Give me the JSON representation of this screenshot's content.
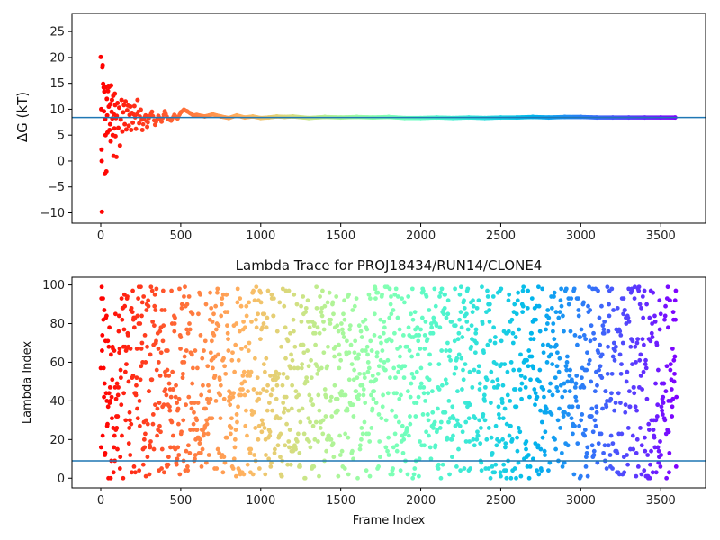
{
  "chart_data": [
    {
      "type": "scatter",
      "title": "",
      "xlabel": "",
      "ylabel": "ΔG (kT)",
      "xlim": [
        -180,
        3780
      ],
      "ylim": [
        -12,
        28.5
      ],
      "xticks": [
        0,
        500,
        1000,
        1500,
        2000,
        2500,
        3000,
        3500
      ],
      "yticks": [
        -10,
        -5,
        0,
        5,
        10,
        15,
        20,
        25
      ],
      "hline": 8.4,
      "hline_color": "#1f77b4",
      "colormap": "rainbow (red at frame 0 to violet at frame 3600)",
      "series_description": "running free-energy estimate per frame",
      "points": [
        [
          0,
          20.1
        ],
        [
          3,
          10.0
        ],
        [
          5,
          2.2
        ],
        [
          6,
          0.0
        ],
        [
          7,
          -9.8
        ],
        [
          10,
          18.1
        ],
        [
          12,
          18.5
        ],
        [
          15,
          14.9
        ],
        [
          18,
          14.2
        ],
        [
          20,
          9.6
        ],
        [
          22,
          13.4
        ],
        [
          25,
          -2.5
        ],
        [
          28,
          8.1
        ],
        [
          30,
          5.0
        ],
        [
          32,
          14.2
        ],
        [
          35,
          -2.0
        ],
        [
          38,
          12.0
        ],
        [
          40,
          8.8
        ],
        [
          42,
          5.5
        ],
        [
          45,
          13.5
        ],
        [
          48,
          14.5
        ],
        [
          50,
          10.5
        ],
        [
          52,
          14.3
        ],
        [
          55,
          6.0
        ],
        [
          58,
          7.1
        ],
        [
          60,
          11.0
        ],
        [
          62,
          3.8
        ],
        [
          65,
          14.6
        ],
        [
          68,
          9.5
        ],
        [
          70,
          11.8
        ],
        [
          72,
          8.2
        ],
        [
          75,
          5.0
        ],
        [
          78,
          12.6
        ],
        [
          80,
          1.0
        ],
        [
          82,
          9.0
        ],
        [
          85,
          6.3
        ],
        [
          88,
          13.0
        ],
        [
          90,
          10.8
        ],
        [
          92,
          4.8
        ],
        [
          95,
          8.3
        ],
        [
          98,
          0.8
        ],
        [
          100,
          8.7
        ],
        [
          105,
          11.2
        ],
        [
          110,
          6.4
        ],
        [
          115,
          10.3
        ],
        [
          120,
          3.0
        ],
        [
          125,
          8.0
        ],
        [
          130,
          11.8
        ],
        [
          135,
          5.7
        ],
        [
          140,
          9.4
        ],
        [
          145,
          10.8
        ],
        [
          150,
          7.1
        ],
        [
          155,
          11.5
        ],
        [
          160,
          6.1
        ],
        [
          165,
          9.8
        ],
        [
          170,
          10.7
        ],
        [
          175,
          6.8
        ],
        [
          180,
          8.9
        ],
        [
          185,
          10.5
        ],
        [
          190,
          6.0
        ],
        [
          195,
          9.3
        ],
        [
          200,
          7.4
        ],
        [
          210,
          10.6
        ],
        [
          220,
          6.2
        ],
        [
          230,
          11.8
        ],
        [
          240,
          7.3
        ],
        [
          250,
          9.9
        ],
        [
          260,
          6.0
        ],
        [
          270,
          8.2
        ],
        [
          280,
          8.8
        ],
        [
          290,
          6.6
        ],
        [
          300,
          8.3
        ],
        [
          320,
          9.5
        ],
        [
          340,
          7.0
        ],
        [
          360,
          8.7
        ],
        [
          380,
          7.6
        ],
        [
          400,
          9.6
        ],
        [
          420,
          8.1
        ],
        [
          440,
          7.8
        ],
        [
          460,
          8.9
        ],
        [
          480,
          8.2
        ],
        [
          500,
          9.4
        ],
        [
          520,
          9.9
        ],
        [
          540,
          9.6
        ],
        [
          560,
          9.2
        ],
        [
          580,
          8.8
        ],
        [
          600,
          8.9
        ],
        [
          650,
          8.6
        ],
        [
          700,
          9.0
        ],
        [
          750,
          8.6
        ],
        [
          800,
          8.3
        ],
        [
          850,
          8.8
        ],
        [
          900,
          8.4
        ],
        [
          950,
          8.6
        ],
        [
          1000,
          8.3
        ],
        [
          1050,
          8.4
        ],
        [
          1100,
          8.6
        ],
        [
          1150,
          8.5
        ],
        [
          1200,
          8.6
        ],
        [
          1300,
          8.3
        ],
        [
          1400,
          8.5
        ],
        [
          1500,
          8.4
        ],
        [
          1600,
          8.5
        ],
        [
          1700,
          8.4
        ],
        [
          1800,
          8.5
        ],
        [
          1900,
          8.3
        ],
        [
          2000,
          8.3
        ],
        [
          2100,
          8.4
        ],
        [
          2200,
          8.3
        ],
        [
          2300,
          8.4
        ],
        [
          2400,
          8.3
        ],
        [
          2500,
          8.4
        ],
        [
          2600,
          8.4
        ],
        [
          2700,
          8.5
        ],
        [
          2800,
          8.4
        ],
        [
          2900,
          8.5
        ],
        [
          3000,
          8.5
        ],
        [
          3100,
          8.4
        ],
        [
          3200,
          8.4
        ],
        [
          3300,
          8.4
        ],
        [
          3400,
          8.4
        ],
        [
          3500,
          8.4
        ],
        [
          3590,
          8.4
        ]
      ]
    },
    {
      "type": "scatter",
      "title": "Lambda Trace for PROJ18434/RUN14/CLONE4",
      "xlabel": "Frame Index",
      "ylabel": "Lambda Index",
      "xlim": [
        -180,
        3780
      ],
      "ylim": [
        -5,
        104
      ],
      "xticks": [
        0,
        500,
        1000,
        1500,
        2000,
        2500,
        3000,
        3500
      ],
      "yticks": [
        0,
        20,
        40,
        60,
        80,
        100
      ],
      "hline": 9,
      "hline_color": "#1f77b4",
      "colormap": "rainbow (red at frame 0 to violet at frame 3600)",
      "frame_count": 3600,
      "lambda_range": [
        0,
        99
      ],
      "series_description": "lambda index visited at each frame, roughly uniformly distributed over 0-99"
    }
  ]
}
